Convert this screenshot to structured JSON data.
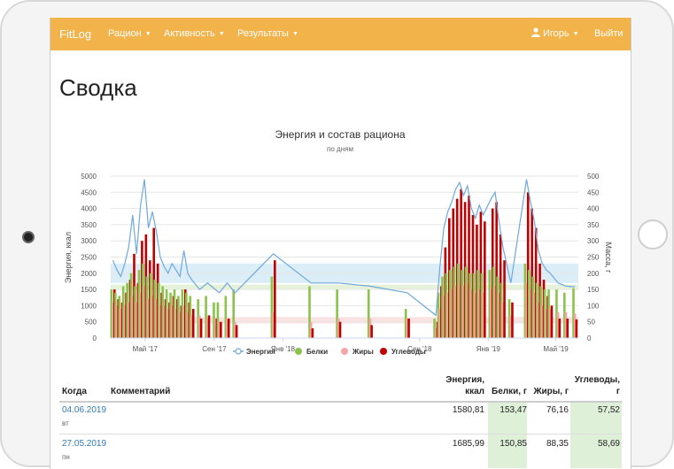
{
  "nav": {
    "brand": "FitLog",
    "items": [
      "Рацион",
      "Активность",
      "Результаты"
    ],
    "user": "Игорь",
    "logout": "Выйти"
  },
  "page": {
    "title": "Сводка"
  },
  "chart_data": {
    "type": "bar",
    "title": "Энергия и состав рациона",
    "subtitle": "по дням",
    "ylabel_left": "Энергия, ккал",
    "ylabel_right": "Масса, г",
    "ylim_left": [
      0,
      5000
    ],
    "ylim_right": [
      0,
      500
    ],
    "yticks_left": [
      "0",
      "500",
      "1000",
      "1500",
      "2000",
      "2500",
      "3000",
      "3500",
      "4000",
      "4500",
      "5000"
    ],
    "yticks_right": [
      "0",
      "50",
      "100",
      "150",
      "200",
      "250",
      "300",
      "350",
      "400",
      "450",
      "500"
    ],
    "xlim": [
      "2017-03-01",
      "2019-06-10"
    ],
    "xticks": [
      {
        "date": "2017-05-01",
        "label": "Май '17"
      },
      {
        "date": "2017-09-01",
        "label": "Сен '17"
      },
      {
        "date": "2018-01-01",
        "label": "Янв '18"
      },
      {
        "date": "2018-09-01",
        "label": "Сен '18"
      },
      {
        "date": "2019-01-01",
        "label": "Янв '19"
      },
      {
        "date": "2019-05-01",
        "label": "Май '19"
      }
    ],
    "legend_position": "bottom",
    "plot_bands": [
      {
        "from": 1700,
        "to": 2300,
        "color": "#dbeef7"
      },
      {
        "from": 1500,
        "to": 1650,
        "color": "#e5f2d9"
      },
      {
        "from": 450,
        "to": 650,
        "color": "#fbe3e3"
      }
    ],
    "series": [
      {
        "name": "Энергия",
        "type": "line",
        "color": "#6fa8dc"
      },
      {
        "name": "Белки",
        "type": "bar",
        "color": "#8bc34a"
      },
      {
        "name": "Жиры",
        "type": "bar",
        "color": "#f4a6a6"
      },
      {
        "name": "Углеводы",
        "type": "bar",
        "color": "#c00000"
      }
    ],
    "points": [
      {
        "date": "2017-03-05",
        "energy": 2400,
        "protein": 150,
        "fat": 110,
        "carbs": 150
      },
      {
        "date": "2017-03-12",
        "energy": 2100,
        "protein": 140,
        "fat": 100,
        "carbs": 120
      },
      {
        "date": "2017-03-19",
        "energy": 1900,
        "protein": 130,
        "fat": 90,
        "carbs": 110
      },
      {
        "date": "2017-03-26",
        "energy": 2300,
        "protein": 160,
        "fat": 100,
        "carbs": 140
      },
      {
        "date": "2017-04-02",
        "energy": 2800,
        "protein": 170,
        "fat": 110,
        "carbs": 180
      },
      {
        "date": "2017-04-09",
        "energy": 3800,
        "protein": 200,
        "fat": 130,
        "carbs": 260
      },
      {
        "date": "2017-04-16",
        "energy": 2600,
        "protein": 160,
        "fat": 110,
        "carbs": 170
      },
      {
        "date": "2017-04-23",
        "energy": 4100,
        "protein": 210,
        "fat": 140,
        "carbs": 300
      },
      {
        "date": "2017-04-30",
        "energy": 4900,
        "protein": 230,
        "fat": 160,
        "carbs": 320
      },
      {
        "date": "2017-05-07",
        "energy": 3400,
        "protein": 190,
        "fat": 120,
        "carbs": 240
      },
      {
        "date": "2017-05-14",
        "energy": 3900,
        "protein": 200,
        "fat": 130,
        "carbs": 340
      },
      {
        "date": "2017-05-21",
        "energy": 3300,
        "protein": 180,
        "fat": 120,
        "carbs": 230
      },
      {
        "date": "2017-05-28",
        "energy": 2500,
        "protein": 170,
        "fat": 100,
        "carbs": 140
      },
      {
        "date": "2017-06-04",
        "energy": 2200,
        "protein": 160,
        "fat": 100,
        "carbs": 120
      },
      {
        "date": "2017-06-11",
        "energy": 2000,
        "protein": 150,
        "fat": 90,
        "carbs": 110
      },
      {
        "date": "2017-06-18",
        "energy": 2300,
        "protein": 140,
        "fat": 100,
        "carbs": 130
      },
      {
        "date": "2017-06-25",
        "energy": 2100,
        "protein": 150,
        "fat": 90,
        "carbs": 120
      },
      {
        "date": "2017-07-02",
        "energy": 1900,
        "protein": 130,
        "fat": 80,
        "carbs": 100
      },
      {
        "date": "2017-07-09",
        "energy": 2700,
        "protein": 150,
        "fat": 100,
        "carbs": 150
      },
      {
        "date": "2017-07-16",
        "energy": 2000,
        "protein": 140,
        "fat": 80,
        "carbs": 110
      },
      {
        "date": "2017-07-23",
        "energy": 1800,
        "protein": 130,
        "fat": 70,
        "carbs": 90
      },
      {
        "date": "2017-08-06",
        "energy": 1500,
        "protein": 120,
        "fat": 70,
        "carbs": 60
      },
      {
        "date": "2017-08-20",
        "energy": 1700,
        "protein": 130,
        "fat": 60,
        "carbs": 70
      },
      {
        "date": "2017-09-03",
        "energy": 1500,
        "protein": 110,
        "fat": 60,
        "carbs": 60
      },
      {
        "date": "2017-09-10",
        "energy": 1400,
        "protein": 110,
        "fat": 50,
        "carbs": 50
      },
      {
        "date": "2017-09-24",
        "energy": 1700,
        "protein": 130,
        "fat": 60,
        "carbs": 60
      },
      {
        "date": "2017-10-08",
        "energy": 1400,
        "protein": 150,
        "fat": 50,
        "carbs": 40
      },
      {
        "date": "2017-12-15",
        "energy": 2600,
        "protein": 190,
        "fat": 80,
        "carbs": 240
      },
      {
        "date": "2018-02-20",
        "energy": 1700,
        "protein": 160,
        "fat": 50,
        "carbs": 30
      },
      {
        "date": "2018-04-10",
        "energy": 1700,
        "protein": 150,
        "fat": 60,
        "carbs": 50
      },
      {
        "date": "2018-06-05",
        "energy": 1600,
        "protein": 150,
        "fat": 60,
        "carbs": 40
      },
      {
        "date": "2018-08-10",
        "energy": 1400,
        "protein": 90,
        "fat": 60,
        "carbs": 60
      },
      {
        "date": "2018-09-30",
        "energy": 700,
        "protein": 60,
        "fat": 30,
        "carbs": 50
      },
      {
        "date": "2018-10-07",
        "energy": 2200,
        "protein": 140,
        "fat": 90,
        "carbs": 160
      },
      {
        "date": "2018-10-14",
        "energy": 3400,
        "protein": 190,
        "fat": 130,
        "carbs": 280
      },
      {
        "date": "2018-10-21",
        "energy": 3900,
        "protein": 200,
        "fat": 140,
        "carbs": 370
      },
      {
        "date": "2018-10-28",
        "energy": 4200,
        "protein": 210,
        "fat": 150,
        "carbs": 400
      },
      {
        "date": "2018-11-04",
        "energy": 4600,
        "protein": 220,
        "fat": 160,
        "carbs": 430
      },
      {
        "date": "2018-11-11",
        "energy": 4800,
        "protein": 230,
        "fat": 170,
        "carbs": 460
      },
      {
        "date": "2018-11-18",
        "energy": 4400,
        "protein": 210,
        "fat": 160,
        "carbs": 420
      },
      {
        "date": "2018-11-25",
        "energy": 4700,
        "protein": 220,
        "fat": 170,
        "carbs": 440
      },
      {
        "date": "2018-12-02",
        "energy": 4000,
        "protein": 200,
        "fat": 150,
        "carbs": 380
      },
      {
        "date": "2018-12-09",
        "energy": 3700,
        "protein": 200,
        "fat": 140,
        "carbs": 350
      },
      {
        "date": "2018-12-16",
        "energy": 4100,
        "protein": 210,
        "fat": 150,
        "carbs": 390
      },
      {
        "date": "2018-12-23",
        "energy": 3800,
        "protein": 200,
        "fat": 140,
        "carbs": 360
      },
      {
        "date": "2019-01-06",
        "energy": 4300,
        "protein": 210,
        "fat": 150,
        "carbs": 400
      },
      {
        "date": "2019-01-13",
        "energy": 4500,
        "protein": 220,
        "fat": 160,
        "carbs": 420
      },
      {
        "date": "2019-01-20",
        "energy": 3600,
        "protein": 190,
        "fat": 140,
        "carbs": 320
      },
      {
        "date": "2019-01-27",
        "energy": 2800,
        "protein": 170,
        "fat": 110,
        "carbs": 240
      },
      {
        "date": "2019-02-10",
        "energy": 1700,
        "protein": 120,
        "fat": 70,
        "carbs": 110
      },
      {
        "date": "2019-03-10",
        "energy": 4900,
        "protein": 230,
        "fat": 170,
        "carbs": 450
      },
      {
        "date": "2019-03-17",
        "energy": 4200,
        "protein": 210,
        "fat": 150,
        "carbs": 400
      },
      {
        "date": "2019-03-24",
        "energy": 3600,
        "protein": 190,
        "fat": 140,
        "carbs": 340
      },
      {
        "date": "2019-03-31",
        "energy": 2700,
        "protein": 170,
        "fat": 110,
        "carbs": 230
      },
      {
        "date": "2019-04-07",
        "energy": 2300,
        "protein": 160,
        "fat": 100,
        "carbs": 180
      },
      {
        "date": "2019-04-14",
        "energy": 2100,
        "protein": 150,
        "fat": 90,
        "carbs": 130
      },
      {
        "date": "2019-04-21",
        "energy": 2000,
        "protein": 150,
        "fat": 90,
        "carbs": 100
      },
      {
        "date": "2019-05-05",
        "energy": 1700,
        "protein": 150,
        "fat": 80,
        "carbs": 60
      },
      {
        "date": "2019-05-19",
        "energy": 1600,
        "protein": 140,
        "fat": 80,
        "carbs": 60
      },
      {
        "date": "2019-06-04",
        "energy": 1580.81,
        "protein": 153.47,
        "fat": 76.16,
        "carbs": 57.52
      }
    ]
  },
  "table": {
    "headers": {
      "when": "Когда",
      "comment": "Комментарий",
      "energy_1": "Энергия,",
      "energy_2": "ккал",
      "protein": "Белки, г",
      "fat": "Жиры, г",
      "carbs_1": "Углеводы,",
      "carbs_2": "г"
    },
    "rows": [
      {
        "date": "04.06.2019",
        "weekday": "вт",
        "comment": "",
        "energy": "1580,81",
        "protein": "153,47",
        "fat": "76,16",
        "carbs": "57,52"
      },
      {
        "date": "27.05.2019",
        "weekday": "пн",
        "comment": "",
        "energy": "1685,99",
        "protein": "150,85",
        "fat": "88,35",
        "carbs": "58,69"
      }
    ]
  }
}
